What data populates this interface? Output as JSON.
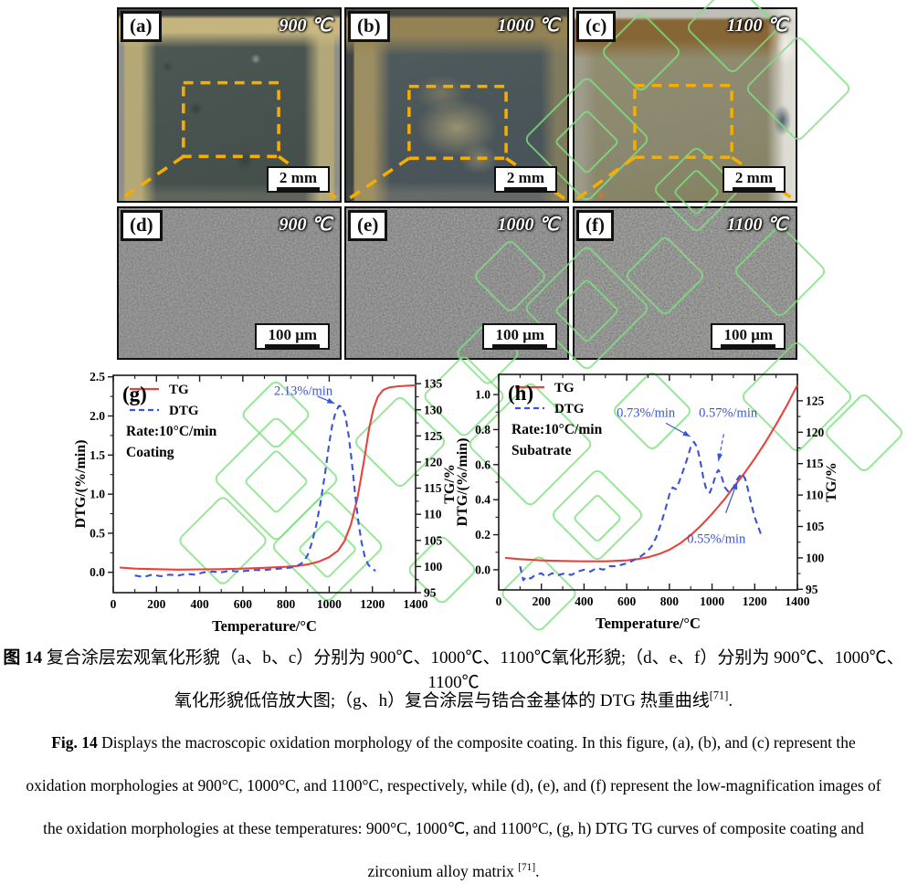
{
  "figure": {
    "photo_panels": [
      {
        "label": "(a)",
        "temp": "900 ℃",
        "scale": "2 mm"
      },
      {
        "label": "(b)",
        "temp": "1000 ℃",
        "scale": "2 mm"
      },
      {
        "label": "(c)",
        "temp": "1100 ℃",
        "scale": "2 mm"
      }
    ],
    "sem_panels": [
      {
        "label": "(d)",
        "temp": "900 ℃",
        "scale": "100 μm"
      },
      {
        "label": "(e)",
        "temp": "1000 ℃",
        "scale": "100 μm"
      },
      {
        "label": "(f)",
        "temp": "1100 ℃",
        "scale": "100 μm"
      }
    ]
  },
  "colors": {
    "dashed_box_orange": "#F5AD00",
    "tg_red": "#E8423C",
    "dtg_blue": "#3A55D4",
    "watermark_green": "#7EE07E"
  },
  "chart_data": [
    {
      "type": "line",
      "panel_label": "(g)",
      "xlabel": "Temperature/°C",
      "ylabel_left": "DTG/(%/min)",
      "ylabel_right": "TG/%",
      "xlim": [
        0,
        1400
      ],
      "xticks": [
        0,
        200,
        400,
        600,
        800,
        1000,
        1200,
        1400
      ],
      "ylim_left": [
        -0.26,
        2.52
      ],
      "yticks_left": [
        "0.0",
        "0.5",
        "1.0",
        "1.5",
        "2.0",
        "2.5"
      ],
      "ylim_right": [
        95,
        136.6
      ],
      "yticks_right": [
        95,
        100,
        105,
        110,
        115,
        120,
        125,
        130,
        135
      ],
      "grid": false,
      "legend": {
        "position": "top-left",
        "entries": [
          {
            "label": "TG",
            "color": "#E8423C",
            "style": "solid"
          },
          {
            "label": "DTG",
            "color": "#3A55D4",
            "style": "dashed"
          }
        ],
        "notes": [
          "Rate:10°C/min",
          "Coating"
        ]
      },
      "series": [
        {
          "name": "TG",
          "axis": "right",
          "color": "#E8423C",
          "style": "solid",
          "points": [
            [
              30,
              99.8
            ],
            [
              100,
              99.6
            ],
            [
              200,
              99.5
            ],
            [
              300,
              99.4
            ],
            [
              400,
              99.45
            ],
            [
              500,
              99.5
            ],
            [
              600,
              99.6
            ],
            [
              700,
              99.75
            ],
            [
              800,
              99.95
            ],
            [
              850,
              100.1
            ],
            [
              900,
              100.4
            ],
            [
              950,
              100.9
            ],
            [
              1000,
              101.8
            ],
            [
              1040,
              103.0
            ],
            [
              1070,
              104.8
            ],
            [
              1100,
              108.0
            ],
            [
              1130,
              113.0
            ],
            [
              1160,
              120.0
            ],
            [
              1185,
              126.5
            ],
            [
              1205,
              130.2
            ],
            [
              1225,
              132.5
            ],
            [
              1250,
              133.8
            ],
            [
              1280,
              134.3
            ],
            [
              1320,
              134.5
            ],
            [
              1360,
              134.6
            ],
            [
              1400,
              134.7
            ]
          ]
        },
        {
          "name": "DTG",
          "axis": "left",
          "color": "#3A55D4",
          "style": "dashed",
          "points": [
            [
              100,
              -0.04
            ],
            [
              140,
              -0.06
            ],
            [
              180,
              -0.03
            ],
            [
              220,
              -0.05
            ],
            [
              260,
              -0.03
            ],
            [
              300,
              -0.04
            ],
            [
              340,
              -0.02
            ],
            [
              380,
              -0.03
            ],
            [
              420,
              0.0
            ],
            [
              460,
              0.01
            ],
            [
              500,
              0.0
            ],
            [
              540,
              0.02
            ],
            [
              580,
              0.01
            ],
            [
              620,
              0.02
            ],
            [
              660,
              0.03
            ],
            [
              700,
              0.03
            ],
            [
              740,
              0.04
            ],
            [
              780,
              0.05
            ],
            [
              820,
              0.06
            ],
            [
              850,
              0.08
            ],
            [
              880,
              0.13
            ],
            [
              900,
              0.22
            ],
            [
              920,
              0.38
            ],
            [
              940,
              0.6
            ],
            [
              960,
              0.9
            ],
            [
              980,
              1.25
            ],
            [
              1000,
              1.65
            ],
            [
              1015,
              1.9
            ],
            [
              1030,
              2.05
            ],
            [
              1045,
              2.13
            ],
            [
              1060,
              2.12
            ],
            [
              1075,
              2.0
            ],
            [
              1090,
              1.75
            ],
            [
              1105,
              1.4
            ],
            [
              1120,
              1.0
            ],
            [
              1135,
              0.65
            ],
            [
              1150,
              0.38
            ],
            [
              1165,
              0.2
            ],
            [
              1180,
              0.1
            ],
            [
              1200,
              0.04
            ],
            [
              1215,
              0.02
            ]
          ]
        }
      ],
      "annotations": [
        {
          "text": "2.13%/min",
          "label_at": [
            880,
            2.33
          ],
          "arrow_to": [
            1025,
            2.16
          ],
          "style": "solid",
          "color": "#3A55D4"
        }
      ]
    },
    {
      "type": "line",
      "panel_label": "(h)",
      "xlabel": "Temperature/°C",
      "ylabel_left": "DTG/(%/min)",
      "ylabel_right": "TG/%",
      "xlim": [
        0,
        1400
      ],
      "xticks": [
        0,
        200,
        400,
        600,
        800,
        1000,
        1200,
        1400
      ],
      "ylim_left": [
        -0.115,
        1.115
      ],
      "yticks_left": [
        "0.0",
        "0.2",
        "0.4",
        "0.6",
        "0.8",
        "1.0"
      ],
      "ylim_right": [
        94.9,
        129.2
      ],
      "yticks_right": [
        95,
        100,
        105,
        110,
        115,
        120,
        125
      ],
      "grid": false,
      "legend": {
        "position": "top-left",
        "entries": [
          {
            "label": "TG",
            "color": "#E8423C",
            "style": "solid"
          },
          {
            "label": "DTG",
            "color": "#3A55D4",
            "style": "dashed"
          }
        ],
        "notes": [
          "Rate:10°C/min",
          "Subatrate"
        ]
      },
      "series": [
        {
          "name": "TG",
          "axis": "right",
          "color": "#E8423C",
          "style": "solid",
          "points": [
            [
              30,
              100.0
            ],
            [
              100,
              99.8
            ],
            [
              200,
              99.6
            ],
            [
              300,
              99.5
            ],
            [
              400,
              99.45
            ],
            [
              500,
              99.45
            ],
            [
              600,
              99.6
            ],
            [
              650,
              99.8
            ],
            [
              700,
              100.1
            ],
            [
              750,
              100.6
            ],
            [
              800,
              101.3
            ],
            [
              850,
              102.3
            ],
            [
              900,
              103.6
            ],
            [
              950,
              105.2
            ],
            [
              1000,
              107.0
            ],
            [
              1030,
              108.2
            ],
            [
              1060,
              109.4
            ],
            [
              1100,
              111.2
            ],
            [
              1150,
              113.4
            ],
            [
              1200,
              115.8
            ],
            [
              1250,
              118.4
            ],
            [
              1300,
              121.2
            ],
            [
              1350,
              124.2
            ],
            [
              1400,
              127.5
            ]
          ]
        },
        {
          "name": "DTG",
          "axis": "left",
          "color": "#3A55D4",
          "style": "dashed",
          "points": [
            [
              100,
              0.02
            ],
            [
              115,
              -0.06
            ],
            [
              130,
              -0.04
            ],
            [
              150,
              -0.05
            ],
            [
              170,
              -0.03
            ],
            [
              200,
              -0.02
            ],
            [
              220,
              -0.04
            ],
            [
              250,
              -0.02
            ],
            [
              280,
              -0.03
            ],
            [
              310,
              -0.02
            ],
            [
              340,
              -0.03
            ],
            [
              370,
              -0.01
            ],
            [
              400,
              0.0
            ],
            [
              430,
              -0.01
            ],
            [
              460,
              0.01
            ],
            [
              490,
              0.0
            ],
            [
              520,
              0.02
            ],
            [
              550,
              0.02
            ],
            [
              580,
              0.03
            ],
            [
              610,
              0.04
            ],
            [
              640,
              0.06
            ],
            [
              670,
              0.08
            ],
            [
              700,
              0.11
            ],
            [
              720,
              0.14
            ],
            [
              740,
              0.19
            ],
            [
              760,
              0.26
            ],
            [
              780,
              0.34
            ],
            [
              800,
              0.43
            ],
            [
              815,
              0.47
            ],
            [
              830,
              0.46
            ],
            [
              845,
              0.5
            ],
            [
              860,
              0.55
            ],
            [
              880,
              0.62
            ],
            [
              900,
              0.7
            ],
            [
              915,
              0.73
            ],
            [
              930,
              0.7
            ],
            [
              945,
              0.62
            ],
            [
              960,
              0.52
            ],
            [
              975,
              0.45
            ],
            [
              990,
              0.44
            ],
            [
              1005,
              0.49
            ],
            [
              1020,
              0.55
            ],
            [
              1030,
              0.57
            ],
            [
              1045,
              0.53
            ],
            [
              1060,
              0.47
            ],
            [
              1080,
              0.44
            ],
            [
              1100,
              0.47
            ],
            [
              1120,
              0.52
            ],
            [
              1140,
              0.55
            ],
            [
              1155,
              0.52
            ],
            [
              1170,
              0.45
            ],
            [
              1185,
              0.37
            ],
            [
              1200,
              0.3
            ],
            [
              1215,
              0.25
            ],
            [
              1230,
              0.2
            ]
          ]
        }
      ],
      "annotations": [
        {
          "text": "0.73%/min",
          "label_at": [
            690,
            0.9
          ],
          "arrow_to": [
            898,
            0.76
          ],
          "style": "solid",
          "color": "#3A55D4"
        },
        {
          "text": "0.57%/min",
          "label_at": [
            1075,
            0.9
          ],
          "arrow_to": [
            1030,
            0.62
          ],
          "style": "dashed",
          "color": "#3A55D4"
        },
        {
          "text": "0.55%/min",
          "label_at": [
            1020,
            0.18
          ],
          "arrow_to": [
            1118,
            0.5
          ],
          "style": "solid",
          "color": "#3A55D4"
        }
      ]
    }
  ],
  "caption": {
    "cn": [
      {
        "prefix": "图 14",
        "text": " 复合涂层宏观氧化形貌（a、b、c）分别为 900℃、1000℃、1100℃氧化形貌;（d、e、f）分别为 900℃、1000℃、1100℃"
      },
      {
        "text": "氧化形貌低倍放大图;（g、h）复合涂层与锆合金基体的 DTG 热重曲线",
        "sup": "[71]",
        "tail": "."
      }
    ],
    "en": [
      {
        "prefix": "Fig. 14",
        "text": " Displays the macroscopic oxidation morphology of the composite coating. In this figure, (a), (b), and (c) represent the"
      },
      {
        "text": "oxidation morphologies at 900°C, 1000°C, and 1100°C, respectively, while (d), (e), and (f) represent the low-magnification images of"
      },
      {
        "text": "the oxidation morphologies at these temperatures: 900°C, 1000℃, and 1100°C, (g, h) DTG TG curves of composite coating and"
      },
      {
        "text": "zirconium alloy matrix ",
        "sup": "[71]",
        "tail": "."
      }
    ]
  }
}
